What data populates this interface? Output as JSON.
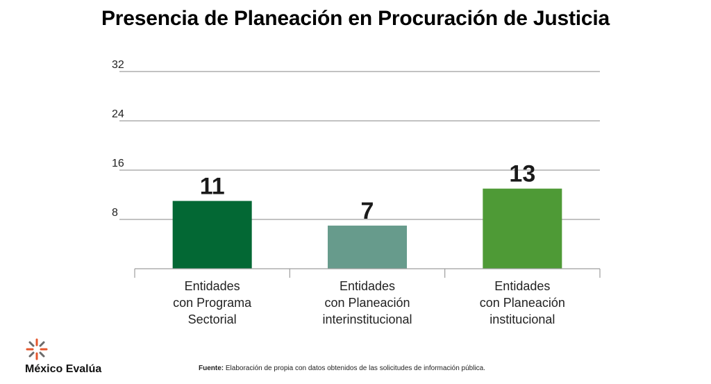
{
  "chart_data": {
    "type": "bar",
    "title": "Presencia de Planeación en Procuración de Justicia",
    "categories": [
      [
        "Entidades",
        "con Programa",
        "Sectorial"
      ],
      [
        "Entidades",
        "con Planeación",
        "interinstitucional"
      ],
      [
        "Entidades",
        "con Planeación",
        "institucional"
      ]
    ],
    "values": [
      11,
      7,
      13
    ],
    "data_labels": [
      "11",
      "7",
      "13"
    ],
    "bar_colors": [
      "#036834",
      "#679b8c",
      "#4e9a36"
    ],
    "yticks": [
      8,
      16,
      24,
      32
    ],
    "ylim": [
      0,
      32
    ],
    "xlabel": "",
    "ylabel": "",
    "grid": true
  },
  "footer": {
    "logo_text": "México Evalúa",
    "logo_icon": "star-burst-icon",
    "source_label": "Fuente:",
    "source_text": " Elaboración de propia con datos obtenidos de las solicitudes de información pública."
  }
}
